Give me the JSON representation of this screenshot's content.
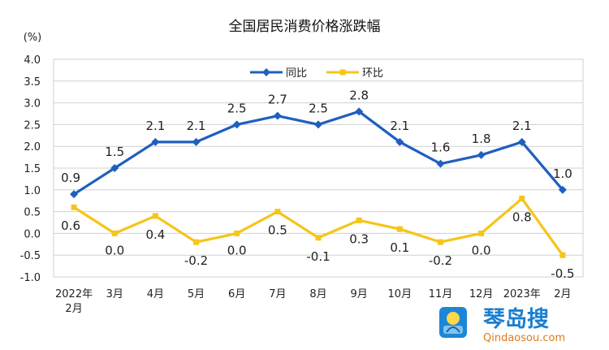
{
  "chart_data": {
    "type": "line",
    "title": "全国居民消费价格涨跌幅",
    "ylabel": "(%)",
    "ylim": [
      -1.0,
      4.0
    ],
    "yticks": [
      "4.0",
      "3.5",
      "3.0",
      "2.5",
      "2.0",
      "1.5",
      "1.0",
      "0.5",
      "0.0",
      "-0.5",
      "-1.0"
    ],
    "categories": [
      [
        "2022年",
        "2月"
      ],
      [
        "3月"
      ],
      [
        "4月"
      ],
      [
        "5月"
      ],
      [
        "6月"
      ],
      [
        "7月"
      ],
      [
        "8月"
      ],
      [
        "9月"
      ],
      [
        "10月"
      ],
      [
        "11月"
      ],
      [
        "12月"
      ],
      [
        "2023年"
      ],
      [
        "2月"
      ]
    ],
    "legend_position": "top-center",
    "series": [
      {
        "name": "同比",
        "color": "#1f5fbf",
        "marker": "diamond",
        "values": [
          0.9,
          1.5,
          2.1,
          2.1,
          2.5,
          2.7,
          2.5,
          2.8,
          2.1,
          1.6,
          1.8,
          2.1,
          1.0
        ],
        "labels": [
          "0.9",
          "1.5",
          "2.1",
          "2.1",
          "2.5",
          "2.7",
          "2.5",
          "2.8",
          "2.1",
          "1.6",
          "1.8",
          "2.1",
          "1.0"
        ]
      },
      {
        "name": "环比",
        "color": "#f5c518",
        "marker": "square",
        "values": [
          0.6,
          0.0,
          0.4,
          -0.2,
          0.0,
          0.5,
          -0.1,
          0.3,
          0.1,
          -0.2,
          0.0,
          0.8,
          -0.5
        ],
        "labels": [
          "0.6",
          "0.0",
          "0.4",
          "-0.2",
          "0.0",
          "0.5",
          "-0.1",
          "0.3",
          "0.1",
          "-0.2",
          "0.0",
          "0.8",
          "-0.5"
        ]
      }
    ]
  },
  "watermark": {
    "brand": "琴岛搜",
    "url": "Qindaosou.com",
    "icon": "qindaosou-logo-icon"
  }
}
